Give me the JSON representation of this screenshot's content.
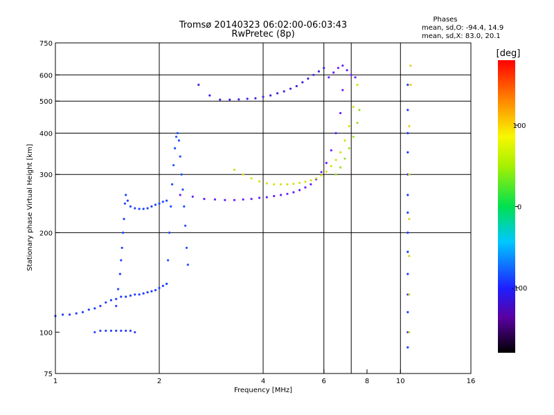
{
  "chart_data": {
    "type": "scatter",
    "title": "Tromsø 20140323 06:02:00-06:03:43",
    "subtitle": "RwPretec (8p)",
    "stats": {
      "header": "Phases",
      "line_o": "mean, sd,O: -94.4, 14.9",
      "line_x": "mean, sd,X:  83.0, 20.1"
    },
    "xlabel": "Frequency [MHz]",
    "ylabel": "Stationary phase Virtual Height [km]",
    "x_scale": "log",
    "y_scale": "log",
    "xlim": [
      1,
      16
    ],
    "ylim": [
      75,
      750
    ],
    "x_ticks": [
      1,
      2,
      4,
      6,
      8,
      10,
      16
    ],
    "x_tick_labels": [
      "1",
      "2",
      "4",
      "6",
      "8",
      "10",
      "16"
    ],
    "x_grid": [
      2,
      4,
      6,
      7.2,
      10
    ],
    "y_ticks": [
      75,
      100,
      200,
      300,
      400,
      500,
      600,
      750
    ],
    "y_tick_labels": [
      "75",
      "100",
      "200",
      "300",
      "400",
      "500",
      "600",
      "750"
    ],
    "y_grid": [
      200,
      300,
      400,
      500,
      600
    ],
    "colorbar": {
      "label": "[deg]",
      "range": [
        -180,
        180
      ],
      "ticks": [
        100,
        0,
        -100
      ],
      "tick_labels": [
        "100",
        "0",
        "-100"
      ]
    },
    "series": [
      {
        "color": "#1e3cff",
        "phase_deg": -100,
        "x": [
          1.0,
          1.05,
          1.1,
          1.15,
          1.2,
          1.25,
          1.3,
          1.35,
          1.4,
          1.45,
          1.5,
          1.55,
          1.6,
          1.65,
          1.7,
          1.75,
          1.8,
          1.85,
          1.9,
          1.95,
          2.0,
          2.05,
          2.1
        ],
        "y": [
          112,
          113,
          113,
          114,
          115,
          117,
          118,
          120,
          123,
          125,
          126,
          128,
          128,
          129,
          130,
          130,
          131,
          132,
          133,
          134,
          136,
          138,
          140
        ]
      },
      {
        "color": "#2a3cff",
        "phase_deg": -105,
        "x": [
          1.3,
          1.35,
          1.4,
          1.45,
          1.5,
          1.55,
          1.6,
          1.65,
          1.7
        ],
        "y": [
          100,
          101,
          101,
          101,
          101,
          101,
          101,
          101,
          100
        ]
      },
      {
        "color": "#1e46ff",
        "phase_deg": -100,
        "x": [
          1.5,
          1.52,
          1.54,
          1.55,
          1.56,
          1.57,
          1.58,
          1.59,
          1.6,
          1.62,
          1.65,
          1.7,
          1.75,
          1.8,
          1.85,
          1.9,
          1.95,
          2.0,
          2.05,
          2.1
        ],
        "y": [
          120,
          135,
          150,
          165,
          180,
          200,
          220,
          245,
          260,
          250,
          240,
          237,
          236,
          236,
          237,
          240,
          243,
          245,
          248,
          250
        ]
      },
      {
        "color": "#1e50ff",
        "phase_deg": -95,
        "x": [
          2.1,
          2.12,
          2.14,
          2.16,
          2.18,
          2.2,
          2.22,
          2.24,
          2.26,
          2.28,
          2.3,
          2.32,
          2.34,
          2.36,
          2.38,
          2.4,
          2.42
        ],
        "y": [
          140,
          165,
          200,
          240,
          280,
          320,
          360,
          390,
          400,
          380,
          340,
          300,
          270,
          240,
          210,
          180,
          160
        ]
      },
      {
        "color": "#6a1eff",
        "phase_deg": -115,
        "x": [
          2.3,
          2.5,
          2.7,
          2.9,
          3.1,
          3.3,
          3.5,
          3.7,
          3.9,
          4.1,
          4.3,
          4.5,
          4.7,
          4.9,
          5.1,
          5.3,
          5.5,
          5.7,
          5.9,
          6.1,
          6.3,
          6.5,
          6.7,
          6.8
        ],
        "y": [
          260,
          257,
          253,
          252,
          251,
          251,
          252,
          253,
          255,
          256,
          258,
          260,
          262,
          265,
          269,
          274,
          280,
          290,
          305,
          325,
          355,
          400,
          460,
          540
        ]
      },
      {
        "color": "#3a28e0",
        "phase_deg": -110,
        "x": [
          2.6,
          2.8,
          3.0,
          3.2,
          3.4,
          3.6,
          3.8,
          4.0,
          4.2,
          4.4,
          4.6,
          4.8,
          5.0,
          5.2,
          5.4,
          5.6,
          5.8,
          6.0
        ],
        "y": [
          560,
          520,
          505,
          505,
          506,
          508,
          510,
          515,
          520,
          528,
          535,
          545,
          555,
          570,
          585,
          600,
          615,
          630
        ]
      },
      {
        "color": "#d8e018",
        "phase_deg": 95,
        "x": [
          3.3,
          3.5,
          3.7,
          3.9,
          4.1,
          4.3,
          4.5,
          4.7,
          4.9,
          5.1,
          5.3,
          5.5,
          5.7,
          5.9,
          6.1,
          6.3,
          6.5,
          6.7,
          6.9,
          7.1,
          7.3,
          7.5
        ],
        "y": [
          310,
          300,
          292,
          286,
          282,
          280,
          280,
          280,
          281,
          283,
          285,
          288,
          292,
          298,
          306,
          318,
          332,
          350,
          380,
          420,
          480,
          560
        ]
      },
      {
        "color": "#a0e028",
        "phase_deg": 70,
        "x": [
          6.5,
          6.7,
          6.9,
          7.1,
          7.3,
          7.5,
          7.6
        ],
        "y": [
          300,
          315,
          335,
          360,
          390,
          430,
          470
        ]
      },
      {
        "color": "#6a1eff",
        "phase_deg": -115,
        "x": [
          6.2,
          6.4,
          6.6,
          6.8,
          7.0,
          7.2,
          7.4
        ],
        "y": [
          590,
          610,
          630,
          640,
          620,
          600,
          590
        ]
      },
      {
        "color": "#1e3cff",
        "phase_deg": -100,
        "x": [
          10.5,
          10.5,
          10.5,
          10.5,
          10.5,
          10.5,
          10.5,
          10.5,
          10.5,
          10.5,
          10.5,
          10.5,
          10.5,
          10.5
        ],
        "y": [
          90,
          100,
          115,
          130,
          150,
          175,
          200,
          230,
          260,
          300,
          350,
          400,
          470,
          560
        ]
      },
      {
        "color": "#e8d020",
        "phase_deg": 100,
        "x": [
          10.6,
          10.6,
          10.6,
          10.6,
          10.6,
          10.6,
          10.7,
          10.7
        ],
        "y": [
          100,
          130,
          170,
          220,
          300,
          420,
          560,
          640
        ]
      }
    ]
  }
}
